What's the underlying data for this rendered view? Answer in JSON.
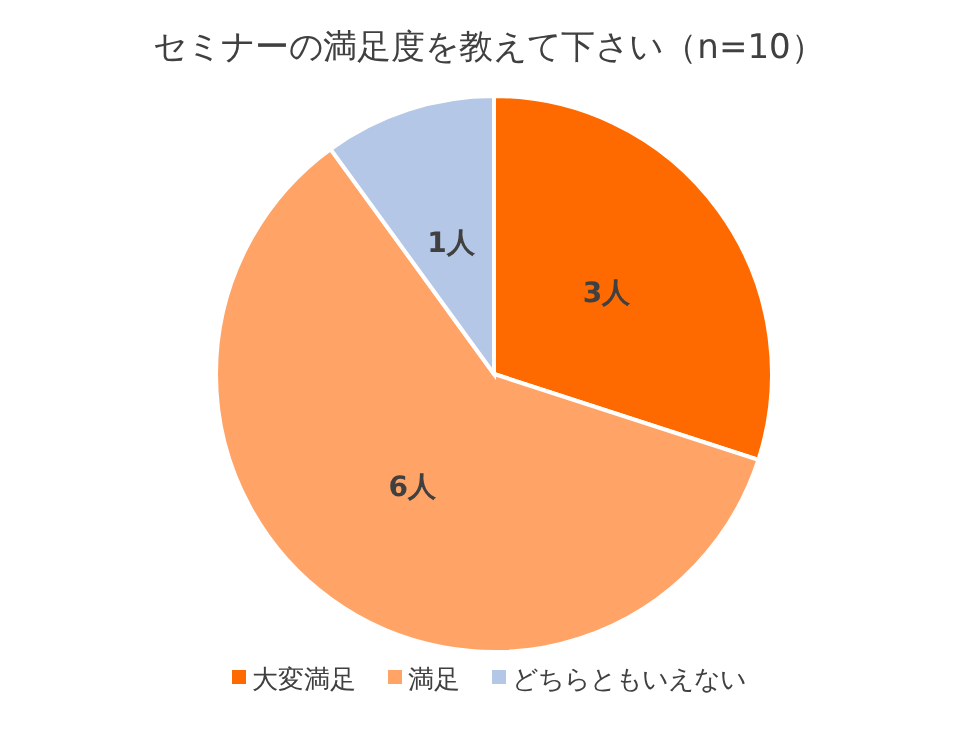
{
  "chart_data": {
    "type": "pie",
    "title": "セミナーの満足度を教えて下さい（n=10）",
    "categories": [
      "大変満足",
      "満足",
      "どちらともいえない"
    ],
    "values": [
      3,
      6,
      1
    ],
    "colors": [
      "#ff6a00",
      "#ffa366",
      "#b4c7e7"
    ],
    "value_labels": [
      "3人",
      "6人",
      "1人"
    ],
    "legend": "bottom"
  }
}
